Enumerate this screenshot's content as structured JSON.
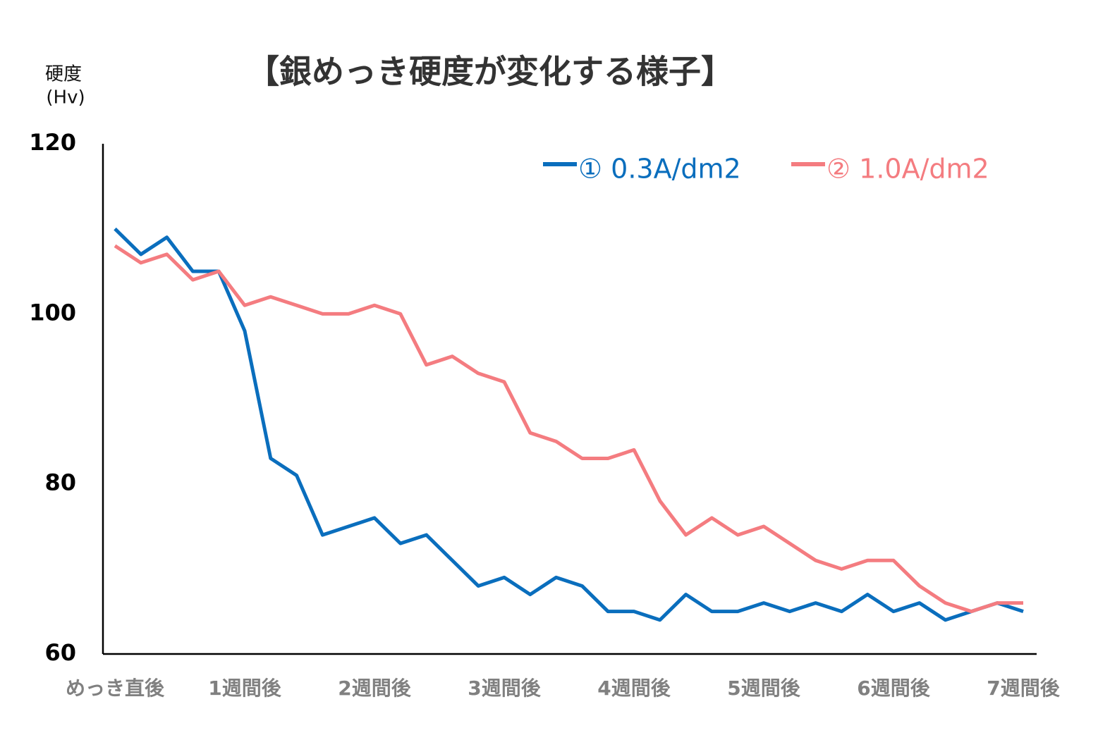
{
  "chart_data": {
    "type": "line",
    "title": "【銀めっき硬度が変化する様子】",
    "y_label": [
      "硬度",
      "(Hv)"
    ],
    "categories": [
      "めっき直後",
      null,
      null,
      null,
      null,
      "1週間後",
      null,
      null,
      null,
      null,
      "2週間後",
      null,
      null,
      null,
      null,
      "3週間後",
      null,
      null,
      null,
      null,
      "4週間後",
      null,
      null,
      null,
      null,
      "5週間後",
      null,
      null,
      null,
      null,
      "6週間後",
      null,
      null,
      null,
      null,
      "7週間後"
    ],
    "series": [
      {
        "name": "① 0.3A/dm2",
        "color": "#0a6ebd",
        "values": [
          110,
          107,
          109,
          105,
          105,
          98,
          83,
          81,
          74,
          75,
          76,
          73,
          74,
          71,
          68,
          69,
          67,
          69,
          68,
          65,
          65,
          64,
          67,
          65,
          65,
          66,
          65,
          66,
          65,
          67,
          65,
          66,
          64,
          65,
          66,
          65
        ]
      },
      {
        "name": "② 1.0A/dm2",
        "color": "#f47c80",
        "values": [
          108,
          106,
          107,
          104,
          105,
          101,
          102,
          101,
          100,
          100,
          101,
          100,
          94,
          95,
          93,
          92,
          86,
          85,
          83,
          83,
          84,
          78,
          74,
          76,
          74,
          75,
          73,
          71,
          70,
          71,
          71,
          68,
          66,
          65,
          66,
          66
        ]
      }
    ],
    "ylim": [
      60,
      120
    ],
    "yticks": [
      60,
      80,
      100,
      120
    ],
    "grid": false,
    "legend": "top-right"
  }
}
